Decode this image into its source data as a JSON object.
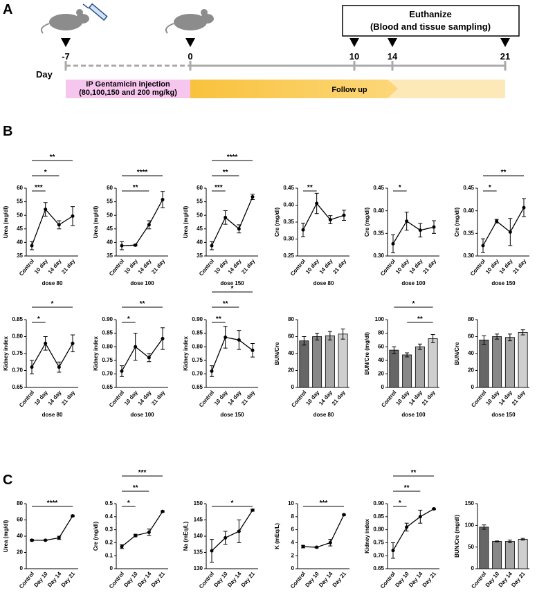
{
  "panels": {
    "a": "A",
    "b": "B",
    "c": "C"
  },
  "timeline": {
    "day_label": "Day",
    "days": [
      -7,
      0,
      10,
      14,
      21
    ],
    "euthanize_title": "Euthanize",
    "euthanize_sub": "(Blood and tissue sampling)",
    "injection": "IP Gentamicin injection",
    "injection_doses": "(80,100,150 and 200 mg/kg)",
    "follow_up": "Follow up"
  },
  "chart_data": [
    {
      "type": "line",
      "ylabel": "Urea (mg/dl)",
      "xlabel": "dose 80",
      "categories": [
        "Control",
        "10 day",
        "14 day",
        "21 day"
      ],
      "values": [
        38.8,
        52.2,
        46.5,
        49.7
      ],
      "errors": [
        1.5,
        2.5,
        1.5,
        3.5
      ],
      "ylim": [
        35,
        60
      ],
      "yticks": [
        35,
        40,
        45,
        50,
        55,
        60
      ],
      "color": "#000000",
      "significance": [
        {
          "between": [
            0,
            1
          ],
          "label": "***"
        },
        {
          "between": [
            0,
            2
          ],
          "label": "*"
        },
        {
          "between": [
            0,
            3
          ],
          "label": "**"
        }
      ]
    },
    {
      "type": "line",
      "ylabel": "Urea (mg/dl)",
      "xlabel": "dose 100",
      "categories": [
        "Control",
        "10 day",
        "14 day",
        "21 day"
      ],
      "values": [
        38.8,
        39,
        46.5,
        55.8
      ],
      "errors": [
        1.5,
        0.3,
        1.5,
        3
      ],
      "ylim": [
        35,
        60
      ],
      "yticks": [
        35,
        40,
        45,
        50,
        55,
        60
      ],
      "color": "#000000",
      "significance": [
        {
          "between": [
            0,
            2
          ],
          "label": "**"
        },
        {
          "between": [
            0,
            3
          ],
          "label": "****"
        }
      ]
    },
    {
      "type": "line",
      "ylabel": "Urea (mg/dl)",
      "xlabel": "dose 150",
      "categories": [
        "Control",
        "10 day",
        "14 day",
        "21 day"
      ],
      "values": [
        38.8,
        49.2,
        45,
        56.8
      ],
      "errors": [
        1.5,
        2.5,
        1.5,
        1
      ],
      "ylim": [
        35,
        60
      ],
      "yticks": [
        35,
        40,
        45,
        50,
        55,
        60
      ],
      "color": "#000000",
      "significance": [
        {
          "between": [
            0,
            1
          ],
          "label": "***"
        },
        {
          "between": [
            0,
            2
          ],
          "label": "**"
        },
        {
          "between": [
            0,
            3
          ],
          "label": "****"
        }
      ]
    },
    {
      "type": "line",
      "ylabel": "Cre (mg/dl)",
      "xlabel": "dose 80",
      "categories": [
        "Control",
        "10 day",
        "14 day",
        "21 day"
      ],
      "values": [
        0.327,
        0.405,
        0.357,
        0.37
      ],
      "errors": [
        0.02,
        0.03,
        0.012,
        0.015
      ],
      "ylim": [
        0.25,
        0.45
      ],
      "yticks": [
        0.25,
        {
          "value": 0.3,
          "label": "0.30"
        },
        0.35,
        {
          "value": 0.4,
          "label": "0.40"
        },
        0.45
      ],
      "color": "#000000",
      "significance": [
        {
          "between": [
            0,
            1
          ],
          "label": "**"
        }
      ]
    },
    {
      "type": "line",
      "ylabel": "Cre (mg/dl)",
      "xlabel": "dose 100",
      "categories": [
        "Control",
        "10 day",
        "14 day",
        "21 day"
      ],
      "values": [
        0.327,
        0.377,
        0.357,
        0.364
      ],
      "errors": [
        0.02,
        0.02,
        0.015,
        0.014
      ],
      "ylim": [
        0.3,
        0.45
      ],
      "yticks": [
        {
          "value": 0.3,
          "label": "0.30"
        },
        0.35,
        {
          "value": 0.4,
          "label": "0.40"
        },
        0.45
      ],
      "color": "#000000",
      "significance": [
        {
          "between": [
            0,
            1
          ],
          "label": "*"
        }
      ]
    },
    {
      "type": "line",
      "ylabel": "Cre (mg/dl)",
      "xlabel": "dose 150",
      "categories": [
        "Control",
        "10 day",
        "14 day",
        "21 day"
      ],
      "values": [
        0.323,
        0.377,
        0.353,
        0.407
      ],
      "errors": [
        0.015,
        0.004,
        0.03,
        0.02
      ],
      "ylim": [
        0.3,
        0.45
      ],
      "yticks": [
        {
          "value": 0.3,
          "label": "0.30"
        },
        0.35,
        {
          "value": 0.4,
          "label": "0.40"
        },
        0.45
      ],
      "color": "#000000",
      "significance": [
        {
          "between": [
            0,
            1
          ],
          "label": "*"
        },
        {
          "between": [
            0,
            3
          ],
          "label": "**"
        }
      ]
    },
    {
      "type": "line",
      "ylabel": "Kidney index",
      "xlabel": "dose 80",
      "categories": [
        "Control",
        "10 day",
        "14 day",
        "21 day"
      ],
      "values": [
        0.71,
        0.78,
        0.71,
        0.78
      ],
      "errors": [
        0.02,
        0.02,
        0.015,
        0.025
      ],
      "ylim": [
        0.65,
        0.85
      ],
      "yticks": [
        0.65,
        {
          "value": 0.7,
          "label": "0.70"
        },
        0.75,
        {
          "value": 0.8,
          "label": "0.80"
        },
        0.85
      ],
      "color": "#000000",
      "significance": [
        {
          "between": [
            0,
            1
          ],
          "label": "*"
        },
        {
          "between": [
            0,
            3
          ],
          "label": "*"
        }
      ]
    },
    {
      "type": "line",
      "ylabel": "Kidney index",
      "xlabel": "dose 100",
      "categories": [
        "Control",
        "10 day",
        "14 day",
        "21 day"
      ],
      "values": [
        0.71,
        0.8,
        0.76,
        0.83
      ],
      "errors": [
        0.02,
        0.05,
        0.015,
        0.04
      ],
      "ylim": [
        0.65,
        0.9
      ],
      "yticks": [
        0.65,
        {
          "value": 0.7,
          "label": "0.70"
        },
        0.75,
        {
          "value": 0.8,
          "label": "0.80"
        },
        0.85,
        {
          "value": 0.9,
          "label": "0.90"
        }
      ],
      "color": "#000000",
      "significance": [
        {
          "between": [
            0,
            1
          ],
          "label": "*"
        },
        {
          "between": [
            0,
            3
          ],
          "label": "**"
        }
      ]
    },
    {
      "type": "line",
      "ylabel": "Kidney index",
      "xlabel": "dose 150",
      "categories": [
        "Control",
        "10 day",
        "14 day",
        "21 day"
      ],
      "values": [
        0.71,
        0.835,
        0.825,
        0.787
      ],
      "errors": [
        0.02,
        0.04,
        0.035,
        0.025
      ],
      "ylim": [
        0.65,
        0.9
      ],
      "yticks": [
        0.65,
        {
          "value": 0.7,
          "label": "0.70"
        },
        0.75,
        {
          "value": 0.8,
          "label": "0.80"
        },
        0.85,
        {
          "value": 0.9,
          "label": "0.90"
        }
      ],
      "color": "#000000",
      "significance": [
        {
          "between": [
            0,
            1
          ],
          "label": "**"
        },
        {
          "between": [
            0,
            2
          ],
          "label": "**"
        },
        {
          "between": [
            0,
            3
          ],
          "label": "*"
        }
      ]
    },
    {
      "type": "bar",
      "ylabel": "BUN/Cre",
      "xlabel": "dose 80",
      "categories": [
        "Control",
        "10 day",
        "14 day",
        "21 day"
      ],
      "values": [
        55,
        60,
        61,
        63
      ],
      "errors": [
        5,
        4,
        5,
        6
      ],
      "ylim": [
        0,
        80
      ],
      "yticks": [
        0,
        20,
        40,
        60,
        80
      ],
      "colors": [
        "#666666",
        "#888888",
        "#a6a6a6",
        "#cfcfcf"
      ],
      "significance": []
    },
    {
      "type": "bar",
      "ylabel": "BUN/Cre (mg/dl)",
      "xlabel": "dose 100",
      "categories": [
        "Control",
        "10 day",
        "14 day",
        "21 day"
      ],
      "values": [
        55,
        48,
        60,
        72
      ],
      "errors": [
        5,
        3,
        4,
        6
      ],
      "ylim": [
        0,
        100
      ],
      "yticks": [
        0,
        20,
        40,
        60,
        80,
        100
      ],
      "colors": [
        "#666666",
        "#888888",
        "#a6a6a6",
        "#cfcfcf"
      ],
      "significance": [
        {
          "between": [
            1,
            3
          ],
          "label": "**"
        },
        {
          "between": [
            0,
            3
          ],
          "label": "*"
        }
      ]
    },
    {
      "type": "bar",
      "ylabel": "BUN/Cre",
      "xlabel": "dose 150",
      "categories": [
        "Control",
        "10 day",
        "14 day",
        "21 day"
      ],
      "values": [
        56,
        60,
        59,
        65
      ],
      "errors": [
        5,
        3,
        4,
        3
      ],
      "ylim": [
        0,
        80
      ],
      "yticks": [
        0,
        20,
        40,
        60,
        80
      ],
      "colors": [
        "#666666",
        "#888888",
        "#a6a6a6",
        "#cfcfcf"
      ],
      "significance": []
    },
    {
      "type": "line",
      "ylabel": "Urea (mg/dl)",
      "categories": [
        "Control",
        "Day 10",
        "Day 14",
        "Day 21"
      ],
      "values": [
        35,
        35,
        38,
        65
      ],
      "errors": [
        1,
        0.5,
        2,
        1
      ],
      "ylim": [
        0,
        80
      ],
      "yticks": [
        0,
        20,
        40,
        60,
        80
      ],
      "color": "#000000",
      "significance": [
        {
          "between": [
            0,
            3
          ],
          "label": "****"
        }
      ]
    },
    {
      "type": "line",
      "ylabel": "Cre (mg/dl)",
      "categories": [
        "Control",
        "Day 10",
        "Day 14",
        "Day 21"
      ],
      "values": [
        0.17,
        0.255,
        0.28,
        0.44
      ],
      "errors": [
        0.015,
        0.01,
        0.025,
        0.005
      ],
      "ylim": [
        0,
        0.5
      ],
      "yticks": [
        0,
        0.1,
        0.2,
        0.3,
        0.4,
        0.5
      ],
      "color": "#000000",
      "significance": [
        {
          "between": [
            0,
            1
          ],
          "label": "*"
        },
        {
          "between": [
            0,
            2
          ],
          "label": "**"
        },
        {
          "between": [
            0,
            3
          ],
          "label": "***"
        }
      ]
    },
    {
      "type": "line",
      "ylabel": "Na (mEq/L)",
      "categories": [
        "Control",
        "Day 10",
        "Day 14",
        "Day 21"
      ],
      "values": [
        135.5,
        139.5,
        141.5,
        148
      ],
      "errors": [
        3.5,
        2,
        3.5,
        0.3
      ],
      "ylim": [
        130,
        150
      ],
      "yticks": [
        130,
        135,
        140,
        145,
        150
      ],
      "color": "#000000",
      "significance": [
        {
          "between": [
            0,
            3
          ],
          "label": "*"
        }
      ]
    },
    {
      "type": "line",
      "ylabel": "K (mEq/L)",
      "categories": [
        "Control",
        "Day 10",
        "Day 14",
        "Day 21"
      ],
      "values": [
        3.4,
        3.3,
        4,
        8.3
      ],
      "errors": [
        0.2,
        0.1,
        0.5,
        0.1
      ],
      "ylim": [
        0,
        10
      ],
      "yticks": [
        0,
        2,
        4,
        6,
        8,
        10
      ],
      "color": "#000000",
      "significance": [
        {
          "between": [
            0,
            3
          ],
          "label": "***"
        }
      ]
    },
    {
      "type": "line",
      "ylabel": "Kidney index",
      "categories": [
        "Control",
        "Day 10",
        "Day 14",
        "Day 21"
      ],
      "values": [
        0.72,
        0.81,
        0.85,
        0.88
      ],
      "errors": [
        0.03,
        0.015,
        0.025,
        0.003
      ],
      "ylim": [
        0.65,
        0.9
      ],
      "yticks": [
        0.65,
        {
          "value": 0.7,
          "label": "0.70"
        },
        0.75,
        {
          "value": 0.8,
          "label": "0.80"
        },
        0.85,
        {
          "value": 0.9,
          "label": "0.90"
        }
      ],
      "color": "#000000",
      "significance": [
        {
          "between": [
            0,
            1
          ],
          "label": "*"
        },
        {
          "between": [
            0,
            2
          ],
          "label": "**"
        },
        {
          "between": [
            0,
            3
          ],
          "label": "**"
        }
      ]
    },
    {
      "type": "bar",
      "ylabel": "BUN/Cre (mg/dl)",
      "categories": [
        "Control",
        "Day 10",
        "Day 14",
        "Day 21"
      ],
      "values": [
        96,
        63,
        63,
        68
      ],
      "errors": [
        5,
        1,
        3,
        2
      ],
      "ylim": [
        0,
        150
      ],
      "yticks": [
        0,
        50,
        100,
        150
      ],
      "colors": [
        "#666666",
        "#888888",
        "#a6a6a6",
        "#cfcfcf"
      ],
      "significance": []
    }
  ]
}
